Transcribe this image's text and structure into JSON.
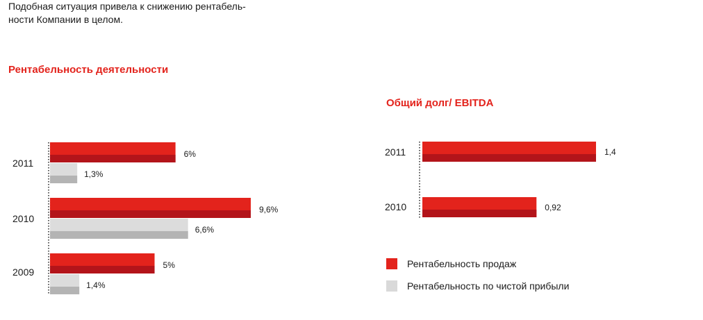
{
  "intro_text": "Подобная ситуация привела к снижению рентабель-ности Компании в целом.",
  "intro_lines": [
    "Подобная ситуация привела к снижению рентабель-",
    "ности Компании в целом."
  ],
  "colors": {
    "red": "#e3231c",
    "red_dark": "#b3141a",
    "gray": "#dcdcdc",
    "gray_dark": "#b4b4b4",
    "title_red": "#e3231c"
  },
  "legend": [
    {
      "label": "Рентабельность продаж",
      "color": "#e3231c"
    },
    {
      "label": "Рентабельность по чистой прибыли",
      "color": "#d9d9d9"
    }
  ],
  "chart_data": [
    {
      "type": "bar",
      "orientation": "horizontal",
      "title": "Рентабельность деятельности",
      "categories": [
        "2011",
        "2010",
        "2009"
      ],
      "series": [
        {
          "name": "Рентабельность продаж",
          "values": [
            6,
            9.6,
            5
          ],
          "labels": [
            "6%",
            "9,6%",
            "5%"
          ]
        },
        {
          "name": "Рентабельность по чистой прибыли",
          "values": [
            1.3,
            6.6,
            1.4
          ],
          "labels": [
            "1,3%",
            "6,6%",
            "1,4%"
          ]
        }
      ],
      "xlim": [
        0,
        10
      ],
      "grid": false,
      "legend": "bottom-right"
    },
    {
      "type": "bar",
      "orientation": "horizontal",
      "title": "Общий долг/ EBITDA",
      "categories": [
        "2011",
        "2010"
      ],
      "series": [
        {
          "values": [
            1.4,
            0.92
          ],
          "labels": [
            "1,4",
            "0,92"
          ]
        }
      ],
      "xlim": [
        0,
        1.5
      ],
      "grid": false
    }
  ]
}
